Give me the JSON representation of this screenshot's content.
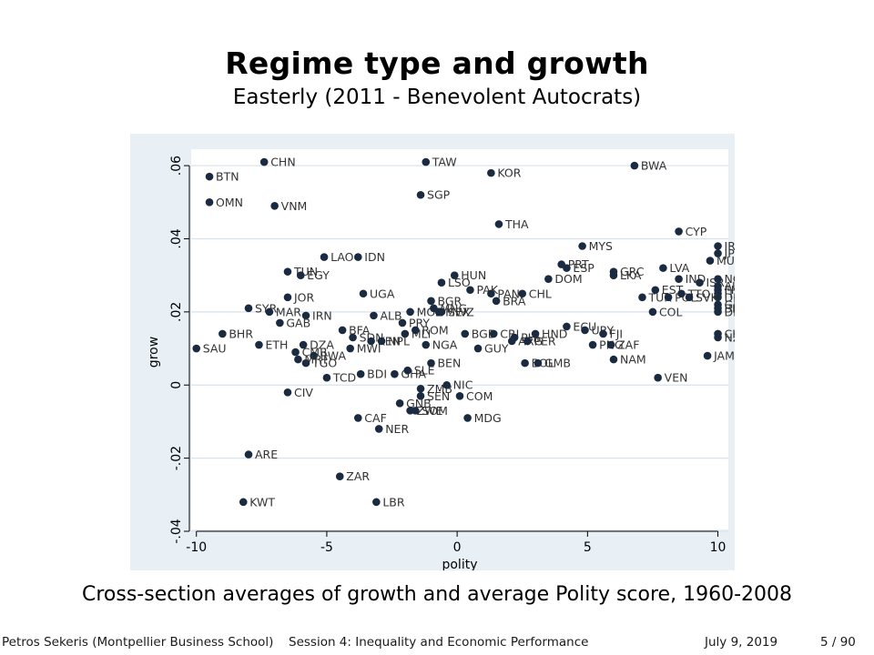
{
  "slide": {
    "title": "Regime type and growth",
    "subtitle": "Easterly (2011 - Benevolent Autocrats)",
    "caption": "Cross-section averages of growth and average Polity score, 1960-2008",
    "footer_author": "Petros Sekeris  (Montpellier Business School)",
    "footer_session": "Session 4: Inequality and Economic Performance",
    "footer_date": "July 9, 2019",
    "footer_page": "5 / 90"
  },
  "colors": {
    "outer_bg": "#e8f0f6",
    "plot_bg": "#ffffff",
    "marker": "#1a2a40",
    "grid": "#d6e2ec"
  },
  "chart_data": {
    "type": "scatter",
    "xlabel": "polity",
    "ylabel": "grow",
    "xlim": [
      -10.2,
      10.4
    ],
    "ylim": [
      -0.0395,
      0.0645
    ],
    "xticks": [
      -10,
      -5,
      0,
      5,
      10
    ],
    "xtick_labels": [
      "-10",
      "-5",
      "0",
      "5",
      "10"
    ],
    "yticks": [
      -0.04,
      -0.02,
      0,
      0.02,
      0.04,
      0.06
    ],
    "ytick_labels": [
      "-.04",
      "-.02",
      "0",
      ".02",
      ".04",
      ".06"
    ],
    "grid": true,
    "points": [
      {
        "label": "CHN",
        "x": -7.4,
        "y": 0.061
      },
      {
        "label": "TAW",
        "x": -1.2,
        "y": 0.061
      },
      {
        "label": "BWA",
        "x": 6.8,
        "y": 0.06
      },
      {
        "label": "BTN",
        "x": -9.5,
        "y": 0.057
      },
      {
        "label": "KOR",
        "x": 1.3,
        "y": 0.058
      },
      {
        "label": "OMN",
        "x": -9.5,
        "y": 0.05
      },
      {
        "label": "VNM",
        "x": -7.0,
        "y": 0.049
      },
      {
        "label": "SGP",
        "x": -1.4,
        "y": 0.052
      },
      {
        "label": "THA",
        "x": 1.6,
        "y": 0.044
      },
      {
        "label": "CYP",
        "x": 8.5,
        "y": 0.042
      },
      {
        "label": "IRL",
        "x": 10.0,
        "y": 0.038
      },
      {
        "label": "JPN",
        "x": 10.0,
        "y": 0.036
      },
      {
        "label": "MUS",
        "x": 9.7,
        "y": 0.034
      },
      {
        "label": "MYS",
        "x": 4.8,
        "y": 0.038
      },
      {
        "label": "LAO",
        "x": -5.1,
        "y": 0.035
      },
      {
        "label": "IDN",
        "x": -3.8,
        "y": 0.035
      },
      {
        "label": "PRT",
        "x": 4.0,
        "y": 0.033
      },
      {
        "label": "ESP",
        "x": 4.2,
        "y": 0.032
      },
      {
        "label": "DOM",
        "x": 3.5,
        "y": 0.029
      },
      {
        "label": "GRC",
        "x": 6.0,
        "y": 0.031
      },
      {
        "label": "LKA",
        "x": 6.0,
        "y": 0.03
      },
      {
        "label": "LVA",
        "x": 7.9,
        "y": 0.032
      },
      {
        "label": "IND",
        "x": 8.5,
        "y": 0.029
      },
      {
        "label": "ISR",
        "x": 9.3,
        "y": 0.028
      },
      {
        "label": "NOR",
        "x": 10.0,
        "y": 0.029
      },
      {
        "label": "AUT",
        "x": 10.0,
        "y": 0.027
      },
      {
        "label": "FIN",
        "x": 10.0,
        "y": 0.026
      },
      {
        "label": "ITA",
        "x": 10.0,
        "y": 0.025
      },
      {
        "label": "DEU",
        "x": 10.0,
        "y": 0.024
      },
      {
        "label": "GBR",
        "x": 10.0,
        "y": 0.022
      },
      {
        "label": "BEL",
        "x": 10.0,
        "y": 0.021
      },
      {
        "label": "DNK",
        "x": 10.0,
        "y": 0.02
      },
      {
        "label": "TUN",
        "x": -6.5,
        "y": 0.031
      },
      {
        "label": "EGY",
        "x": -6.0,
        "y": 0.03
      },
      {
        "label": "HUN",
        "x": -0.1,
        "y": 0.03
      },
      {
        "label": "LSO",
        "x": -0.6,
        "y": 0.028
      },
      {
        "label": "PAK",
        "x": 0.5,
        "y": 0.026
      },
      {
        "label": "PAN",
        "x": 1.3,
        "y": 0.025
      },
      {
        "label": "CHL",
        "x": 2.5,
        "y": 0.025
      },
      {
        "label": "BRA",
        "x": 1.5,
        "y": 0.023
      },
      {
        "label": "BGR",
        "x": -1.0,
        "y": 0.023
      },
      {
        "label": "UGA",
        "x": -3.6,
        "y": 0.025
      },
      {
        "label": "JOR",
        "x": -6.5,
        "y": 0.024
      },
      {
        "label": "SYR",
        "x": -8.0,
        "y": 0.021
      },
      {
        "label": "MAR",
        "x": -7.2,
        "y": 0.02
      },
      {
        "label": "IRN",
        "x": -5.8,
        "y": 0.019
      },
      {
        "label": "GAB",
        "x": -6.8,
        "y": 0.017
      },
      {
        "label": "ALB",
        "x": -3.2,
        "y": 0.019
      },
      {
        "label": "MOZ",
        "x": -1.8,
        "y": 0.02
      },
      {
        "label": "SWZ",
        "x": -0.6,
        "y": 0.02
      },
      {
        "label": "MNG",
        "x": -0.9,
        "y": 0.021
      },
      {
        "label": "MEX",
        "x": -0.7,
        "y": 0.02
      },
      {
        "label": "TUR",
        "x": 7.1,
        "y": 0.024
      },
      {
        "label": "EST",
        "x": 7.6,
        "y": 0.026
      },
      {
        "label": "POL",
        "x": 8.1,
        "y": 0.024
      },
      {
        "label": "TTO",
        "x": 8.6,
        "y": 0.025
      },
      {
        "label": "SVK",
        "x": 8.9,
        "y": 0.024
      },
      {
        "label": "COL",
        "x": 7.5,
        "y": 0.02
      },
      {
        "label": "PRY",
        "x": -2.1,
        "y": 0.017
      },
      {
        "label": "BHR",
        "x": -9.0,
        "y": 0.014
      },
      {
        "label": "BFA",
        "x": -4.4,
        "y": 0.015
      },
      {
        "label": "SDN",
        "x": -4.0,
        "y": 0.013
      },
      {
        "label": "KEN",
        "x": -3.3,
        "y": 0.012
      },
      {
        "label": "NPL",
        "x": -2.9,
        "y": 0.012
      },
      {
        "label": "MLI",
        "x": -2.0,
        "y": 0.014
      },
      {
        "label": "ROM",
        "x": -1.6,
        "y": 0.015
      },
      {
        "label": "BGD",
        "x": 0.3,
        "y": 0.014
      },
      {
        "label": "CRI",
        "x": 1.4,
        "y": 0.014
      },
      {
        "label": "PHL",
        "x": 2.2,
        "y": 0.013
      },
      {
        "label": "HND",
        "x": 3.0,
        "y": 0.014
      },
      {
        "label": "ARG",
        "x": 2.1,
        "y": 0.012
      },
      {
        "label": "PER",
        "x": 2.7,
        "y": 0.012
      },
      {
        "label": "ECU",
        "x": 4.2,
        "y": 0.016
      },
      {
        "label": "URY",
        "x": 4.9,
        "y": 0.015
      },
      {
        "label": "FJI",
        "x": 5.6,
        "y": 0.014
      },
      {
        "label": "PNG",
        "x": 5.2,
        "y": 0.011
      },
      {
        "label": "ZAF",
        "x": 5.9,
        "y": 0.011
      },
      {
        "label": "CHE",
        "x": 10.0,
        "y": 0.014
      },
      {
        "label": "NZL",
        "x": 10.0,
        "y": 0.013
      },
      {
        "label": "SAU",
        "x": -10.0,
        "y": 0.01
      },
      {
        "label": "ETH",
        "x": -7.6,
        "y": 0.011
      },
      {
        "label": "DZA",
        "x": -5.9,
        "y": 0.011
      },
      {
        "label": "CMR",
        "x": -6.2,
        "y": 0.009
      },
      {
        "label": "RWA",
        "x": -5.5,
        "y": 0.008
      },
      {
        "label": "MWI",
        "x": -4.1,
        "y": 0.01
      },
      {
        "label": "CIV",
        "x": -6.5,
        "y": -0.002
      },
      {
        "label": "TGO",
        "x": -5.8,
        "y": 0.006
      },
      {
        "label": "MRT",
        "x": -6.1,
        "y": 0.007
      },
      {
        "label": "TCD",
        "x": -5.0,
        "y": 0.002
      },
      {
        "label": "BDI",
        "x": -3.7,
        "y": 0.003
      },
      {
        "label": "GHA",
        "x": -2.4,
        "y": 0.003
      },
      {
        "label": "SLE",
        "x": -1.9,
        "y": 0.004
      },
      {
        "label": "NGA",
        "x": -1.2,
        "y": 0.011
      },
      {
        "label": "BEN",
        "x": -1.0,
        "y": 0.006
      },
      {
        "label": "GUY",
        "x": 0.8,
        "y": 0.01
      },
      {
        "label": "BOL",
        "x": 2.6,
        "y": 0.006
      },
      {
        "label": "GMB",
        "x": 3.1,
        "y": 0.006
      },
      {
        "label": "NAM",
        "x": 6.0,
        "y": 0.007
      },
      {
        "label": "VEN",
        "x": 7.7,
        "y": 0.002
      },
      {
        "label": "JAM",
        "x": 9.6,
        "y": 0.008
      },
      {
        "label": "ZMB",
        "x": -1.4,
        "y": -0.001
      },
      {
        "label": "NIC",
        "x": -0.4,
        "y": 0.0
      },
      {
        "label": "SEN",
        "x": -1.4,
        "y": -0.003
      },
      {
        "label": "COM",
        "x": 0.1,
        "y": -0.003
      },
      {
        "label": "GNB",
        "x": -2.2,
        "y": -0.005
      },
      {
        "label": "ZWE",
        "x": -1.8,
        "y": -0.007
      },
      {
        "label": "SOM",
        "x": -1.6,
        "y": -0.007
      },
      {
        "label": "CAF",
        "x": -3.8,
        "y": -0.009
      },
      {
        "label": "MDG",
        "x": 0.4,
        "y": -0.009
      },
      {
        "label": "NER",
        "x": -3.0,
        "y": -0.012
      },
      {
        "label": "ARE",
        "x": -8.0,
        "y": -0.019
      },
      {
        "label": "ZAR",
        "x": -4.5,
        "y": -0.025
      },
      {
        "label": "KWT",
        "x": -8.2,
        "y": -0.032
      },
      {
        "label": "LBR",
        "x": -3.1,
        "y": -0.032
      }
    ]
  }
}
